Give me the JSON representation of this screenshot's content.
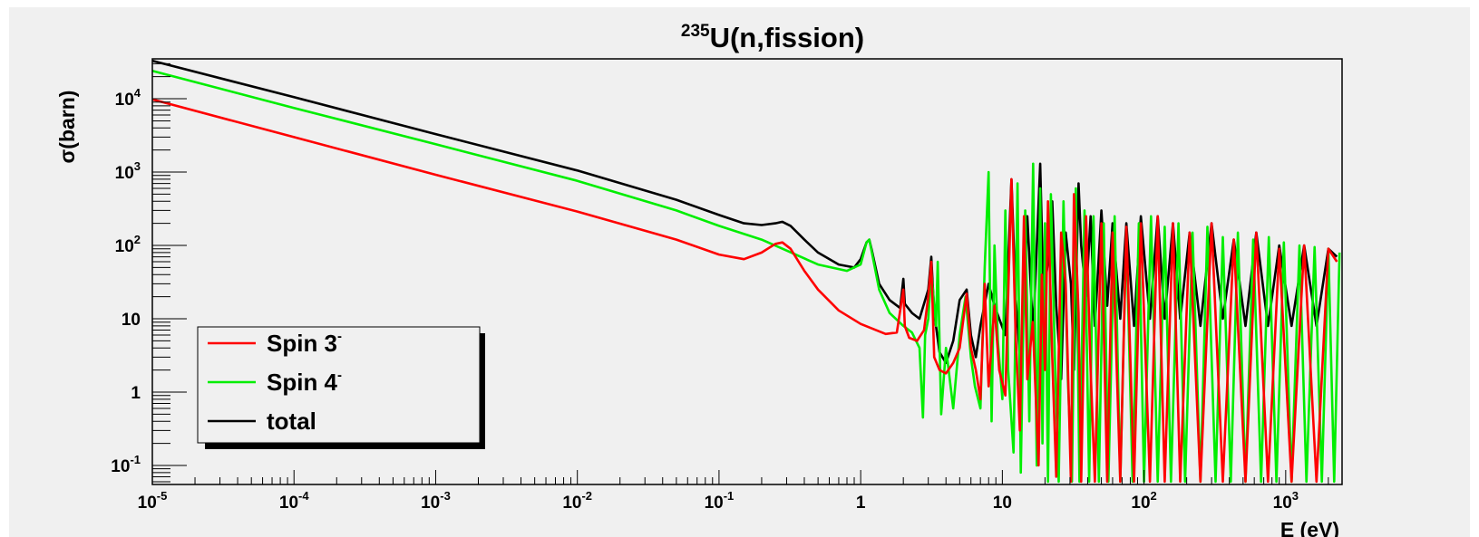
{
  "chart_data": {
    "type": "line",
    "title": {
      "sup": "235",
      "main": "U(n,fission)"
    },
    "xlabel": "E (eV)",
    "ylabel": "σ(barn)",
    "xscale": "log",
    "yscale": "log",
    "xlim": [
      1e-05,
      2500
    ],
    "ylim": [
      0.055,
      35000
    ],
    "grid": false,
    "legend_position": "bottom-left",
    "x_ticks": [
      {
        "value": 1e-05,
        "base": "10",
        "exp": "-5"
      },
      {
        "value": 0.0001,
        "base": "10",
        "exp": "-4"
      },
      {
        "value": 0.001,
        "base": "10",
        "exp": "-3"
      },
      {
        "value": 0.01,
        "base": "10",
        "exp": "-2"
      },
      {
        "value": 0.1,
        "base": "10",
        "exp": "-1"
      },
      {
        "value": 1,
        "base": "1",
        "exp": ""
      },
      {
        "value": 10,
        "base": "10",
        "exp": ""
      },
      {
        "value": 100,
        "base": "10",
        "exp": "2"
      },
      {
        "value": 1000,
        "base": "10",
        "exp": "3"
      }
    ],
    "y_ticks": [
      {
        "value": 0.1,
        "base": "10",
        "exp": "-1"
      },
      {
        "value": 1,
        "base": "1",
        "exp": ""
      },
      {
        "value": 10,
        "base": "10",
        "exp": ""
      },
      {
        "value": 100,
        "base": "10",
        "exp": "2"
      },
      {
        "value": 1000,
        "base": "10",
        "exp": "3"
      },
      {
        "value": 10000,
        "base": "10",
        "exp": "4"
      }
    ],
    "series": [
      {
        "name": "Spin 3",
        "name_sup": "-",
        "color": "#ff0000",
        "x": [
          1e-05,
          0.0001,
          0.001,
          0.01,
          0.05,
          0.1,
          0.15,
          0.2,
          0.25,
          0.28,
          0.32,
          0.4,
          0.5,
          0.7,
          1.0,
          1.5,
          1.8,
          2.0,
          2.05,
          2.2,
          2.5,
          2.8,
          3.0,
          3.15,
          3.3,
          3.6,
          4.0,
          4.5,
          5.0,
          5.6,
          6.0,
          6.5,
          7.0,
          7.5,
          8.0,
          8.8,
          9.5,
          10.5,
          11.6,
          12.4,
          13.3,
          14.2,
          15.0,
          16.4,
          18.0,
          19.0,
          20.0,
          21.0,
          22.5,
          24.0,
          26.0,
          28.0,
          30.5,
          32.0,
          34.5,
          36.0,
          39.0,
          42.0,
          45.0,
          50.0,
          55.0,
          60.0,
          68.0,
          75.0,
          85.0,
          95.0,
          110.0,
          125.0,
          140.0,
          160.0,
          180.0,
          210.0,
          250.0,
          300.0,
          360.0,
          430.0,
          520.0,
          620.0,
          750.0,
          900.0,
          1100.0,
          1350.0,
          1650.0,
          2000.0,
          2300.0
        ],
        "y": [
          9800,
          3000,
          920,
          290,
          120,
          75,
          65,
          80,
          105,
          110,
          90,
          45,
          25,
          13,
          8.5,
          6.2,
          6.5,
          25,
          8,
          5.5,
          5,
          7,
          20,
          60,
          3,
          2,
          1.8,
          2.5,
          4,
          22,
          4,
          2,
          0.8,
          30,
          1.2,
          15,
          2,
          0.9,
          800,
          6,
          0.3,
          250,
          1.5,
          9,
          0.1,
          40,
          2,
          400,
          3,
          0.07,
          150,
          30,
          0.06,
          500,
          12,
          0.06,
          250,
          2,
          0.06,
          200,
          0.06,
          150,
          0.06,
          180,
          0.06,
          200,
          0.06,
          250,
          0.06,
          200,
          0.06,
          150,
          0.06,
          200,
          0.06,
          120,
          0.06,
          150,
          0.06,
          90,
          0.06,
          100,
          0.06,
          90,
          60
        ]
      },
      {
        "name": "Spin 4",
        "name_sup": "-",
        "color": "#00ee00",
        "x": [
          1e-05,
          0.0001,
          0.001,
          0.01,
          0.05,
          0.1,
          0.2,
          0.3,
          0.5,
          0.8,
          1.0,
          1.1,
          1.15,
          1.2,
          1.35,
          1.6,
          2.0,
          2.3,
          2.6,
          2.75,
          2.85,
          3.0,
          3.15,
          3.4,
          3.5,
          3.7,
          4.0,
          4.5,
          5.0,
          5.5,
          6.0,
          6.4,
          7.0,
          7.5,
          8.0,
          8.4,
          8.8,
          9.3,
          10.0,
          10.5,
          11.0,
          12.0,
          12.8,
          13.5,
          14.5,
          15.5,
          16.5,
          17.5,
          18.5,
          19.2,
          20.0,
          21.0,
          22.0,
          23.5,
          25.0,
          27.0,
          29.0,
          31.0,
          33.0,
          35.0,
          38.0,
          41.0,
          44.0,
          48.0,
          52.0,
          56.0,
          62.0,
          68.0,
          75.0,
          83.0,
          92.0,
          100.0,
          112.0,
          125.0,
          140.0,
          155.0,
          175.0,
          195.0,
          220.0,
          250.0,
          280.0,
          320.0,
          360.0,
          410.0,
          460.0,
          520.0,
          590.0,
          670.0,
          760.0,
          860.0,
          970.0,
          1100.0,
          1250.0,
          1400.0,
          1600.0,
          1800.0,
          2000.0,
          2200.0,
          2400.0
        ],
        "y": [
          24000,
          7500,
          2400,
          760,
          300,
          185,
          120,
          85,
          55,
          45,
          55,
          110,
          120,
          80,
          25,
          12,
          8,
          6.5,
          4,
          0.45,
          6,
          10,
          45,
          8,
          60,
          0.5,
          4,
          0.6,
          6,
          20,
          3,
          1.2,
          0.6,
          50,
          1000,
          0.4,
          100,
          5,
          0.8,
          300,
          2,
          0.15,
          700,
          0.08,
          300,
          0.4,
          1300,
          0.1,
          600,
          0.2,
          200,
          0.06,
          500,
          3,
          0.06,
          400,
          1.5,
          0.06,
          600,
          0.06,
          300,
          0.06,
          250,
          0.06,
          200,
          0.06,
          250,
          0.06,
          150,
          0.06,
          200,
          0.06,
          250,
          0.06,
          180,
          0.06,
          200,
          0.06,
          150,
          0.06,
          180,
          0.06,
          130,
          0.06,
          150,
          0.06,
          120,
          0.06,
          130,
          0.06,
          110,
          0.06,
          100,
          0.06,
          95,
          0.06,
          90,
          0.06,
          80
        ]
      },
      {
        "name": "total",
        "name_sup": "",
        "color": "#000000",
        "x": [
          1e-05,
          0.0001,
          0.001,
          0.01,
          0.05,
          0.1,
          0.15,
          0.2,
          0.25,
          0.28,
          0.32,
          0.4,
          0.5,
          0.7,
          0.9,
          1.0,
          1.1,
          1.15,
          1.2,
          1.35,
          1.6,
          1.9,
          2.0,
          2.05,
          2.3,
          2.6,
          3.0,
          3.15,
          3.3,
          3.6,
          4.0,
          4.5,
          5.0,
          5.6,
          6.0,
          6.5,
          7.0,
          8.0,
          8.8,
          9.5,
          10.5,
          11.6,
          12.4,
          13.5,
          15.0,
          16.5,
          18.5,
          19.5,
          21.0,
          22.5,
          24.0,
          26.0,
          28.0,
          30.5,
          32.0,
          34.5,
          36.0,
          39.0,
          42.0,
          45.0,
          50.0,
          55.0,
          60.0,
          68.0,
          75.0,
          85.0,
          95.0,
          110.0,
          125.0,
          140.0,
          160.0,
          180.0,
          210.0,
          250.0,
          300.0,
          360.0,
          430.0,
          520.0,
          620.0,
          750.0,
          900.0,
          1100.0,
          1350.0,
          1650.0,
          2000.0,
          2300.0
        ],
        "y": [
          33000,
          10500,
          3300,
          1050,
          420,
          260,
          200,
          190,
          200,
          210,
          185,
          120,
          80,
          55,
          50,
          65,
          110,
          120,
          85,
          30,
          18,
          14,
          35,
          16,
          12,
          10,
          25,
          70,
          12,
          3.5,
          2.5,
          5,
          18,
          25,
          6,
          3,
          8,
          30,
          15,
          10,
          6,
          800,
          20,
          2,
          250,
          6,
          1300,
          20,
          60,
          400,
          15,
          1.5,
          150,
          30,
          2,
          700,
          100,
          20,
          250,
          8,
          300,
          15,
          200,
          10,
          200,
          8,
          250,
          10,
          250,
          10,
          200,
          10,
          150,
          8,
          200,
          10,
          120,
          8,
          150,
          8,
          100,
          8,
          100,
          8,
          90,
          70
        ]
      }
    ]
  }
}
